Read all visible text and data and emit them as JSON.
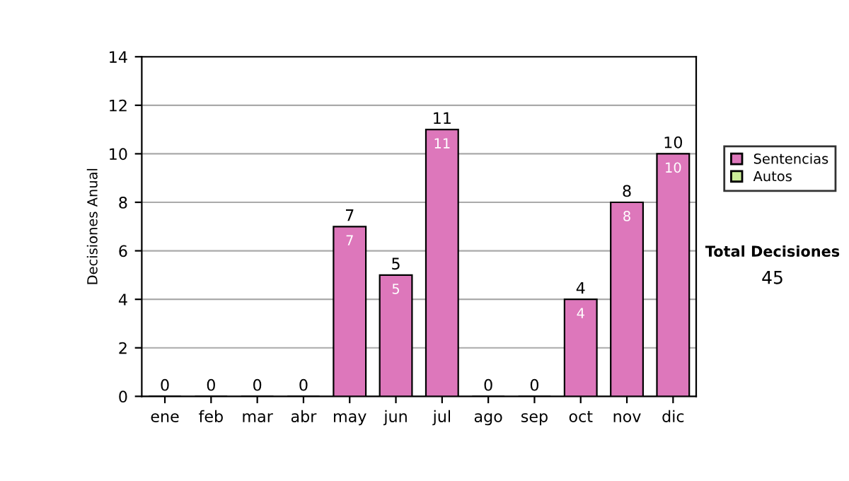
{
  "chart_data": {
    "type": "bar",
    "stacked": true,
    "ylabel": "Decisiones Anual",
    "categories": [
      "ene",
      "feb",
      "mar",
      "abr",
      "may",
      "jun",
      "jul",
      "ago",
      "sep",
      "oct",
      "nov",
      "dic"
    ],
    "series": [
      {
        "name": "Sentencias",
        "color": "#dd77bb",
        "values": [
          0,
          0,
          0,
          0,
          7,
          5,
          11,
          0,
          0,
          4,
          8,
          10
        ],
        "value_labels": [
          null,
          null,
          null,
          null,
          "7",
          "5",
          "11",
          null,
          null,
          "4",
          "8",
          "10"
        ]
      },
      {
        "name": "Autos",
        "color": "#ccee99",
        "values": [
          null,
          null,
          null,
          null,
          null,
          null,
          null,
          null,
          null,
          null,
          null,
          null
        ]
      }
    ],
    "totals": [
      "0",
      "0",
      "0",
      "0",
      "7",
      "5",
      "11",
      "0",
      "0",
      "4",
      "8",
      "10"
    ],
    "ylim": [
      0,
      14
    ],
    "yticks": [
      0,
      2,
      4,
      6,
      8,
      10,
      12,
      14
    ],
    "grid": "y",
    "legend": "right",
    "annotations": [
      "Total Decisiones",
      "45"
    ]
  }
}
